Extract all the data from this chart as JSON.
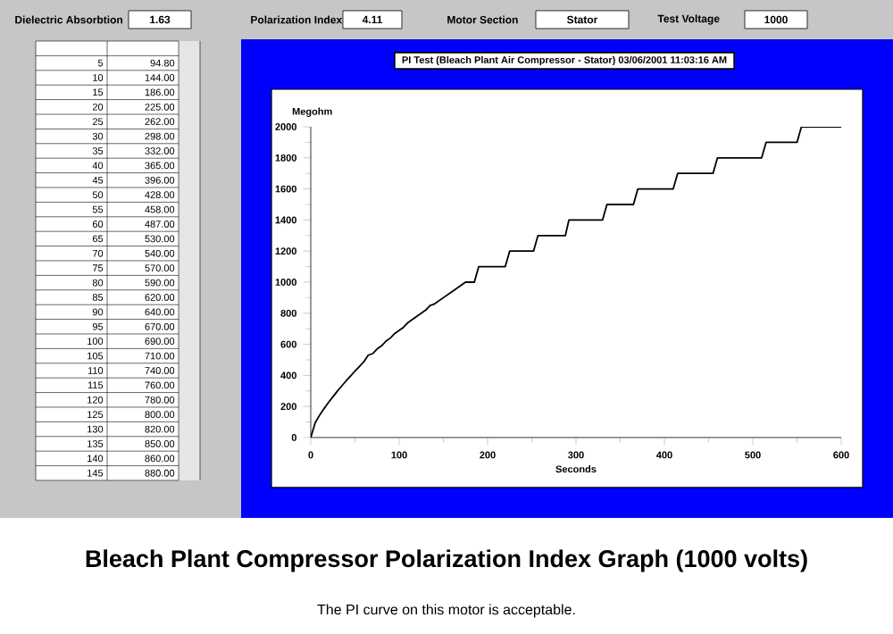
{
  "chart_data": {
    "type": "line",
    "title": "Bleach Plant Compressor Polarization Index Graph (1000 volts)",
    "subtitle": "PI Test (Bleach Plant Air Compressor - Stator) 03/06/2001 11:03:16 AM",
    "xlabel": "Seconds",
    "ylabel": "Megohm",
    "annotations": [
      "Dielectric Absorbtion",
      "1.63",
      "Polarization Index",
      "4.11",
      "Motor Section",
      "Stator",
      "Test Voltage",
      "1000",
      "The PI curve on this motor is acceptable.",
      "5",
      "10",
      "15",
      "20",
      "25",
      "30",
      "35",
      "40",
      "45",
      "50",
      "55",
      "60",
      "65",
      "70",
      "75",
      "80",
      "85",
      "90",
      "95",
      "100",
      "105",
      "110",
      "115",
      "120",
      "125",
      "130",
      "135",
      "140",
      "145",
      "94.80",
      "144.00",
      "186.00",
      "225.00",
      "262.00",
      "298.00",
      "332.00",
      "365.00",
      "396.00",
      "428.00",
      "458.00",
      "487.00",
      "530.00",
      "540.00",
      "570.00",
      "590.00",
      "620.00",
      "640.00",
      "670.00",
      "690.00",
      "710.00",
      "740.00",
      "760.00",
      "780.00",
      "800.00",
      "820.00",
      "850.00",
      "860.00",
      "880.00"
    ],
    "x": [
      0,
      5,
      10,
      15,
      20,
      25,
      30,
      35,
      40,
      45,
      50,
      55,
      60,
      65,
      70,
      75,
      80,
      85,
      90,
      95,
      100,
      105,
      110,
      115,
      120,
      125,
      130,
      135,
      140,
      145,
      150,
      160,
      170,
      175,
      185,
      190,
      220,
      225,
      252,
      257,
      288,
      292,
      330,
      335,
      365,
      370,
      410,
      415,
      455,
      460,
      510,
      515,
      550,
      555,
      600
    ],
    "values": [
      0,
      94.8,
      144,
      186,
      225,
      262,
      298,
      332,
      365,
      396,
      428,
      458,
      487,
      530,
      540,
      570,
      590,
      620,
      640,
      670,
      690,
      710,
      740,
      760,
      780,
      800,
      820,
      850,
      860,
      880,
      900,
      940,
      980,
      1000,
      1000,
      1100,
      1100,
      1200,
      1200,
      1300,
      1300,
      1400,
      1400,
      1500,
      1500,
      1600,
      1600,
      1700,
      1700,
      1800,
      1800,
      1900,
      1900,
      2000,
      2000
    ],
    "color": "#000000",
    "marker": "none",
    "line_style": "solid",
    "xlim": [
      0,
      600
    ],
    "xticks": [
      0,
      100,
      200,
      300,
      400,
      500,
      600
    ],
    "ylim": [
      0,
      2000
    ],
    "yticks": [
      0,
      200,
      400,
      600,
      800,
      1000,
      1200,
      1400,
      1600,
      1800,
      2000
    ]
  }
}
